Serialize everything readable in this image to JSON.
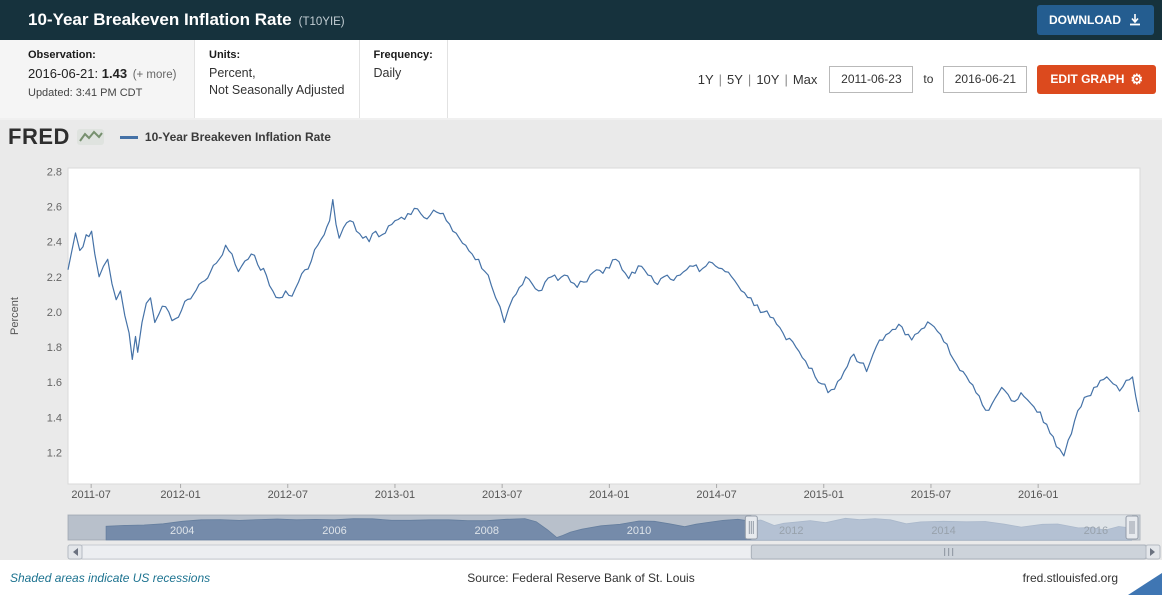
{
  "header": {
    "title": "10-Year Breakeven Inflation Rate",
    "series_id": "(T10YIE)",
    "download_label": "DOWNLOAD"
  },
  "meta": {
    "observation_label": "Observation:",
    "observation_date": "2016-06-21:",
    "observation_value": "1.43",
    "observation_more": "(+ more)",
    "updated": "Updated: 3:41 PM CDT",
    "units_label": "Units:",
    "units_line1": "Percent,",
    "units_line2": "Not Seasonally Adjusted",
    "frequency_label": "Frequency:",
    "frequency_value": "Daily"
  },
  "controls": {
    "ranges": [
      "1Y",
      "5Y",
      "10Y",
      "Max"
    ],
    "date_start": "2011-06-23",
    "date_to_label": "to",
    "date_end": "2016-06-21",
    "edit_graph_label": "EDIT GRAPH"
  },
  "icons": {
    "gear": "⚙"
  },
  "colors": {
    "header_bg": "#16323d",
    "download_button": "#245d90",
    "edit_button": "#dc4a1e",
    "footer_link": "#1d7390",
    "accent_triangle": "#3f76b3"
  },
  "chart": {
    "logo": "FRED",
    "legend": "10-Year Breakeven Inflation Rate",
    "ylabel": "Percent"
  },
  "footer": {
    "left": "Shaded areas indicate US recessions",
    "center": "Source: Federal Reserve Bank of St. Louis",
    "right": "fred.stlouisfed.org"
  },
  "chart_data": {
    "type": "line",
    "title": "10-Year Breakeven Inflation Rate",
    "ylabel": "Percent",
    "line_color": "#4572a7",
    "xlim": [
      2011.475,
      2016.475
    ],
    "ylim": [
      1.02,
      2.82
    ],
    "y_ticks": [
      1.2,
      1.4,
      1.6,
      1.8,
      2.0,
      2.2,
      2.4,
      2.6,
      2.8
    ],
    "x_ticks": [
      {
        "v": 2011.583,
        "label": "2011-07"
      },
      {
        "v": 2012.0,
        "label": "2012-01"
      },
      {
        "v": 2012.5,
        "label": "2012-07"
      },
      {
        "v": 2013.0,
        "label": "2013-01"
      },
      {
        "v": 2013.5,
        "label": "2013-07"
      },
      {
        "v": 2014.0,
        "label": "2014-01"
      },
      {
        "v": 2014.5,
        "label": "2014-07"
      },
      {
        "v": 2015.0,
        "label": "2015-01"
      },
      {
        "v": 2015.5,
        "label": "2015-07"
      },
      {
        "v": 2016.0,
        "label": "2016-01"
      }
    ],
    "noise_amplitude": 0.024,
    "series": [
      {
        "name": "10-Year Breakeven Inflation Rate",
        "points": [
          [
            2011.475,
            2.24
          ],
          [
            2011.49,
            2.33
          ],
          [
            2011.51,
            2.45
          ],
          [
            2011.53,
            2.35
          ],
          [
            2011.56,
            2.44
          ],
          [
            2011.585,
            2.46
          ],
          [
            2011.6,
            2.33
          ],
          [
            2011.62,
            2.2
          ],
          [
            2011.64,
            2.26
          ],
          [
            2011.66,
            2.3
          ],
          [
            2011.68,
            2.16
          ],
          [
            2011.7,
            2.07
          ],
          [
            2011.72,
            2.12
          ],
          [
            2011.74,
            1.98
          ],
          [
            2011.76,
            1.88
          ],
          [
            2011.775,
            1.73
          ],
          [
            2011.79,
            1.86
          ],
          [
            2011.8,
            1.77
          ],
          [
            2011.82,
            1.94
          ],
          [
            2011.84,
            2.05
          ],
          [
            2011.86,
            2.08
          ],
          [
            2011.88,
            1.94
          ],
          [
            2011.9,
            1.99
          ],
          [
            2011.93,
            2.03
          ],
          [
            2011.96,
            1.95
          ],
          [
            2011.99,
            1.97
          ],
          [
            2012.02,
            2.06
          ],
          [
            2012.06,
            2.1
          ],
          [
            2012.1,
            2.17
          ],
          [
            2012.14,
            2.23
          ],
          [
            2012.18,
            2.3
          ],
          [
            2012.21,
            2.38
          ],
          [
            2012.24,
            2.33
          ],
          [
            2012.27,
            2.23
          ],
          [
            2012.3,
            2.29
          ],
          [
            2012.33,
            2.33
          ],
          [
            2012.36,
            2.27
          ],
          [
            2012.4,
            2.21
          ],
          [
            2012.43,
            2.12
          ],
          [
            2012.46,
            2.08
          ],
          [
            2012.49,
            2.12
          ],
          [
            2012.52,
            2.09
          ],
          [
            2012.55,
            2.17
          ],
          [
            2012.58,
            2.24
          ],
          [
            2012.61,
            2.29
          ],
          [
            2012.64,
            2.38
          ],
          [
            2012.67,
            2.44
          ],
          [
            2012.695,
            2.52
          ],
          [
            2012.71,
            2.64
          ],
          [
            2012.725,
            2.5
          ],
          [
            2012.74,
            2.42
          ],
          [
            2012.76,
            2.48
          ],
          [
            2012.79,
            2.52
          ],
          [
            2012.82,
            2.46
          ],
          [
            2012.85,
            2.42
          ],
          [
            2012.88,
            2.4
          ],
          [
            2012.91,
            2.46
          ],
          [
            2012.94,
            2.44
          ],
          [
            2012.97,
            2.49
          ],
          [
            2013.0,
            2.52
          ],
          [
            2013.03,
            2.54
          ],
          [
            2013.06,
            2.56
          ],
          [
            2013.09,
            2.59
          ],
          [
            2013.12,
            2.56
          ],
          [
            2013.15,
            2.53
          ],
          [
            2013.18,
            2.58
          ],
          [
            2013.21,
            2.56
          ],
          [
            2013.24,
            2.52
          ],
          [
            2013.27,
            2.46
          ],
          [
            2013.3,
            2.42
          ],
          [
            2013.33,
            2.38
          ],
          [
            2013.36,
            2.33
          ],
          [
            2013.39,
            2.3
          ],
          [
            2013.42,
            2.23
          ],
          [
            2013.45,
            2.15
          ],
          [
            2013.47,
            2.08
          ],
          [
            2013.49,
            2.03
          ],
          [
            2013.51,
            1.94
          ],
          [
            2013.53,
            2.02
          ],
          [
            2013.55,
            2.08
          ],
          [
            2013.58,
            2.14
          ],
          [
            2013.61,
            2.2
          ],
          [
            2013.64,
            2.16
          ],
          [
            2013.67,
            2.12
          ],
          [
            2013.7,
            2.17
          ],
          [
            2013.73,
            2.2
          ],
          [
            2013.76,
            2.18
          ],
          [
            2013.79,
            2.21
          ],
          [
            2013.82,
            2.17
          ],
          [
            2013.85,
            2.14
          ],
          [
            2013.88,
            2.17
          ],
          [
            2013.91,
            2.21
          ],
          [
            2013.94,
            2.24
          ],
          [
            2013.97,
            2.22
          ],
          [
            2014.0,
            2.25
          ],
          [
            2014.03,
            2.3
          ],
          [
            2014.06,
            2.24
          ],
          [
            2014.09,
            2.19
          ],
          [
            2014.12,
            2.22
          ],
          [
            2014.15,
            2.26
          ],
          [
            2014.18,
            2.21
          ],
          [
            2014.21,
            2.17
          ],
          [
            2014.24,
            2.19
          ],
          [
            2014.27,
            2.21
          ],
          [
            2014.3,
            2.18
          ],
          [
            2014.33,
            2.21
          ],
          [
            2014.36,
            2.24
          ],
          [
            2014.39,
            2.26
          ],
          [
            2014.42,
            2.23
          ],
          [
            2014.45,
            2.26
          ],
          [
            2014.48,
            2.28
          ],
          [
            2014.51,
            2.25
          ],
          [
            2014.54,
            2.23
          ],
          [
            2014.57,
            2.2
          ],
          [
            2014.6,
            2.15
          ],
          [
            2014.63,
            2.11
          ],
          [
            2014.66,
            2.08
          ],
          [
            2014.69,
            2.04
          ],
          [
            2014.72,
            2.0
          ],
          [
            2014.75,
            1.97
          ],
          [
            2014.78,
            1.93
          ],
          [
            2014.81,
            1.88
          ],
          [
            2014.84,
            1.85
          ],
          [
            2014.87,
            1.8
          ],
          [
            2014.9,
            1.74
          ],
          [
            2014.93,
            1.68
          ],
          [
            2014.96,
            1.63
          ],
          [
            2014.99,
            1.59
          ],
          [
            2015.02,
            1.54
          ],
          [
            2015.05,
            1.56
          ],
          [
            2015.08,
            1.62
          ],
          [
            2015.11,
            1.69
          ],
          [
            2015.14,
            1.76
          ],
          [
            2015.17,
            1.71
          ],
          [
            2015.2,
            1.66
          ],
          [
            2015.23,
            1.76
          ],
          [
            2015.26,
            1.84
          ],
          [
            2015.29,
            1.87
          ],
          [
            2015.32,
            1.9
          ],
          [
            2015.35,
            1.93
          ],
          [
            2015.38,
            1.87
          ],
          [
            2015.41,
            1.84
          ],
          [
            2015.44,
            1.88
          ],
          [
            2015.47,
            1.91
          ],
          [
            2015.5,
            1.93
          ],
          [
            2015.53,
            1.89
          ],
          [
            2015.56,
            1.83
          ],
          [
            2015.59,
            1.76
          ],
          [
            2015.62,
            1.7
          ],
          [
            2015.65,
            1.66
          ],
          [
            2015.68,
            1.6
          ],
          [
            2015.71,
            1.54
          ],
          [
            2015.74,
            1.47
          ],
          [
            2015.77,
            1.44
          ],
          [
            2015.8,
            1.51
          ],
          [
            2015.83,
            1.57
          ],
          [
            2015.86,
            1.53
          ],
          [
            2015.89,
            1.49
          ],
          [
            2015.92,
            1.54
          ],
          [
            2015.95,
            1.5
          ],
          [
            2015.98,
            1.46
          ],
          [
            2016.01,
            1.43
          ],
          [
            2016.04,
            1.36
          ],
          [
            2016.07,
            1.29
          ],
          [
            2016.1,
            1.22
          ],
          [
            2016.12,
            1.18
          ],
          [
            2016.14,
            1.27
          ],
          [
            2016.17,
            1.38
          ],
          [
            2016.2,
            1.46
          ],
          [
            2016.23,
            1.52
          ],
          [
            2016.26,
            1.57
          ],
          [
            2016.29,
            1.61
          ],
          [
            2016.32,
            1.63
          ],
          [
            2016.35,
            1.59
          ],
          [
            2016.38,
            1.55
          ],
          [
            2016.41,
            1.61
          ],
          [
            2016.44,
            1.63
          ],
          [
            2016.455,
            1.52
          ],
          [
            2016.47,
            1.43
          ]
        ]
      }
    ],
    "overview": {
      "xlim": [
        2002.5,
        2016.58
      ],
      "ylim": [
        0,
        3.0
      ],
      "selection": [
        2011.475,
        2016.475
      ],
      "year_labels": [
        2004,
        2006,
        2008,
        2010,
        2012,
        2014,
        2016
      ],
      "points": [
        [
          2003.0,
          1.65
        ],
        [
          2003.25,
          1.75
        ],
        [
          2003.5,
          1.8
        ],
        [
          2003.75,
          1.95
        ],
        [
          2004.0,
          2.25
        ],
        [
          2004.25,
          2.42
        ],
        [
          2004.5,
          2.45
        ],
        [
          2004.75,
          2.35
        ],
        [
          2005.0,
          2.45
        ],
        [
          2005.25,
          2.52
        ],
        [
          2005.5,
          2.42
        ],
        [
          2005.75,
          2.47
        ],
        [
          2006.0,
          2.42
        ],
        [
          2006.25,
          2.56
        ],
        [
          2006.5,
          2.55
        ],
        [
          2006.75,
          2.36
        ],
        [
          2007.0,
          2.36
        ],
        [
          2007.25,
          2.42
        ],
        [
          2007.5,
          2.42
        ],
        [
          2007.75,
          2.32
        ],
        [
          2008.0,
          2.32
        ],
        [
          2008.25,
          2.48
        ],
        [
          2008.5,
          2.57
        ],
        [
          2008.65,
          2.2
        ],
        [
          2008.8,
          1.2
        ],
        [
          2008.92,
          0.3
        ],
        [
          2009.0,
          0.55
        ],
        [
          2009.1,
          0.95
        ],
        [
          2009.25,
          1.3
        ],
        [
          2009.5,
          1.7
        ],
        [
          2009.75,
          1.88
        ],
        [
          2010.0,
          2.28
        ],
        [
          2010.2,
          2.25
        ],
        [
          2010.4,
          1.95
        ],
        [
          2010.6,
          1.6
        ],
        [
          2010.75,
          1.9
        ],
        [
          2010.9,
          2.1
        ],
        [
          2011.1,
          2.35
        ],
        [
          2011.3,
          2.48
        ],
        [
          2011.475,
          2.24
        ],
        [
          2011.6,
          2.4
        ],
        [
          2011.775,
          1.74
        ],
        [
          2011.9,
          2.0
        ],
        [
          2012.1,
          2.18
        ],
        [
          2012.25,
          2.33
        ],
        [
          2012.45,
          2.08
        ],
        [
          2012.71,
          2.6
        ],
        [
          2012.9,
          2.44
        ],
        [
          2013.1,
          2.57
        ],
        [
          2013.3,
          2.42
        ],
        [
          2013.51,
          1.95
        ],
        [
          2013.7,
          2.17
        ],
        [
          2014.0,
          2.25
        ],
        [
          2014.3,
          2.19
        ],
        [
          2014.55,
          2.22
        ],
        [
          2014.8,
          1.9
        ],
        [
          2015.02,
          1.55
        ],
        [
          2015.3,
          1.88
        ],
        [
          2015.5,
          1.92
        ],
        [
          2015.77,
          1.45
        ],
        [
          2015.95,
          1.5
        ],
        [
          2016.12,
          1.19
        ],
        [
          2016.3,
          1.62
        ],
        [
          2016.47,
          1.43
        ]
      ]
    }
  }
}
